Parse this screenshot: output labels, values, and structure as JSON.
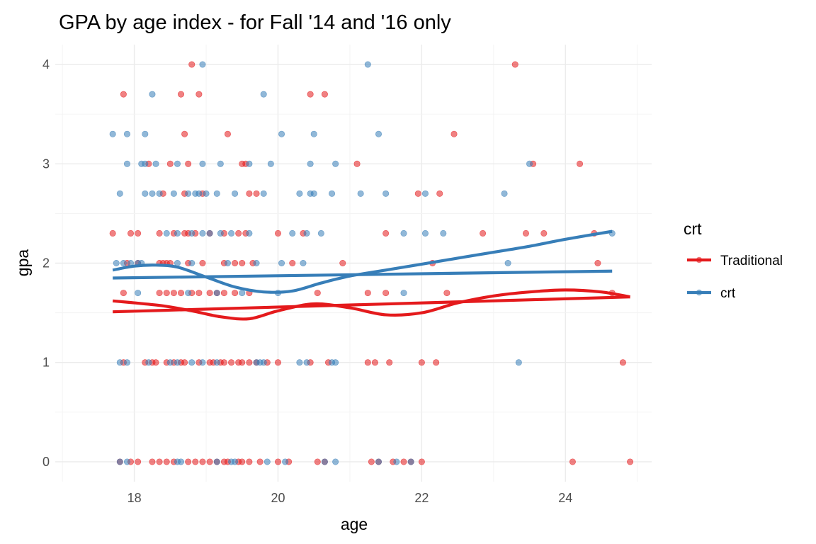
{
  "chart_data": {
    "type": "scatter",
    "title": "GPA by age index - for Fall '14 and '16 only",
    "xlabel": "age",
    "ylabel": "gpa",
    "xlim": [
      16.9,
      25.2
    ],
    "ylim": [
      -0.2,
      4.2
    ],
    "x_ticks": [
      18,
      20,
      22,
      24
    ],
    "x_tick_labels": [
      "18",
      "20",
      "22",
      "24"
    ],
    "y_ticks": [
      0,
      1,
      2,
      3,
      4
    ],
    "y_tick_labels": [
      "0",
      "1",
      "2",
      "3",
      "4"
    ],
    "grid": true,
    "legend": {
      "title": "crt",
      "position": "right",
      "entries": [
        "Traditional",
        "crt"
      ]
    },
    "series": [
      {
        "name": "Traditional",
        "color": "#e41a1c",
        "points": [
          [
            18.8,
            4.0
          ],
          [
            23.3,
            4.0
          ],
          [
            17.85,
            3.7
          ],
          [
            18.65,
            3.7
          ],
          [
            18.9,
            3.7
          ],
          [
            20.45,
            3.7
          ],
          [
            20.65,
            3.7
          ],
          [
            18.7,
            3.3
          ],
          [
            19.3,
            3.3
          ],
          [
            22.45,
            3.3
          ],
          [
            18.2,
            3.0
          ],
          [
            18.5,
            3.0
          ],
          [
            18.75,
            3.0
          ],
          [
            19.5,
            3.0
          ],
          [
            19.55,
            3.0
          ],
          [
            21.1,
            3.0
          ],
          [
            23.55,
            3.0
          ],
          [
            24.2,
            3.0
          ],
          [
            18.4,
            2.7
          ],
          [
            18.7,
            2.7
          ],
          [
            18.95,
            2.7
          ],
          [
            19.6,
            2.7
          ],
          [
            19.7,
            2.7
          ],
          [
            21.95,
            2.7
          ],
          [
            22.25,
            2.7
          ],
          [
            17.7,
            2.3
          ],
          [
            17.95,
            2.3
          ],
          [
            18.05,
            2.3
          ],
          [
            18.35,
            2.3
          ],
          [
            18.55,
            2.3
          ],
          [
            18.7,
            2.3
          ],
          [
            18.75,
            2.3
          ],
          [
            18.85,
            2.3
          ],
          [
            19.05,
            2.3
          ],
          [
            19.25,
            2.3
          ],
          [
            19.45,
            2.3
          ],
          [
            19.55,
            2.3
          ],
          [
            20.0,
            2.3
          ],
          [
            20.35,
            2.3
          ],
          [
            21.5,
            2.3
          ],
          [
            22.85,
            2.3
          ],
          [
            23.45,
            2.3
          ],
          [
            23.7,
            2.3
          ],
          [
            24.4,
            2.3
          ],
          [
            17.9,
            2.0
          ],
          [
            18.05,
            2.0
          ],
          [
            18.35,
            2.0
          ],
          [
            18.4,
            2.0
          ],
          [
            18.45,
            2.0
          ],
          [
            18.5,
            2.0
          ],
          [
            18.75,
            2.0
          ],
          [
            18.95,
            2.0
          ],
          [
            19.25,
            2.0
          ],
          [
            19.4,
            2.0
          ],
          [
            19.5,
            2.0
          ],
          [
            19.65,
            2.0
          ],
          [
            20.2,
            2.0
          ],
          [
            20.9,
            2.0
          ],
          [
            22.15,
            2.0
          ],
          [
            24.45,
            2.0
          ],
          [
            17.85,
            1.7
          ],
          [
            18.35,
            1.7
          ],
          [
            18.45,
            1.7
          ],
          [
            18.55,
            1.7
          ],
          [
            18.65,
            1.7
          ],
          [
            18.8,
            1.7
          ],
          [
            18.9,
            1.7
          ],
          [
            19.05,
            1.7
          ],
          [
            19.15,
            1.7
          ],
          [
            19.25,
            1.7
          ],
          [
            19.4,
            1.7
          ],
          [
            19.6,
            1.7
          ],
          [
            20.55,
            1.7
          ],
          [
            21.25,
            1.7
          ],
          [
            21.5,
            1.7
          ],
          [
            22.35,
            1.7
          ],
          [
            24.65,
            1.7
          ],
          [
            17.85,
            1.0
          ],
          [
            18.15,
            1.0
          ],
          [
            18.25,
            1.0
          ],
          [
            18.3,
            1.0
          ],
          [
            18.45,
            1.0
          ],
          [
            18.55,
            1.0
          ],
          [
            18.65,
            1.0
          ],
          [
            18.7,
            1.0
          ],
          [
            18.9,
            1.0
          ],
          [
            19.05,
            1.0
          ],
          [
            19.1,
            1.0
          ],
          [
            19.2,
            1.0
          ],
          [
            19.25,
            1.0
          ],
          [
            19.35,
            1.0
          ],
          [
            19.45,
            1.0
          ],
          [
            19.5,
            1.0
          ],
          [
            19.6,
            1.0
          ],
          [
            19.7,
            1.0
          ],
          [
            19.85,
            1.0
          ],
          [
            20.0,
            1.0
          ],
          [
            20.45,
            1.0
          ],
          [
            20.7,
            1.0
          ],
          [
            21.25,
            1.0
          ],
          [
            21.35,
            1.0
          ],
          [
            21.55,
            1.0
          ],
          [
            22.0,
            1.0
          ],
          [
            22.2,
            1.0
          ],
          [
            24.8,
            1.0
          ],
          [
            17.8,
            0.0
          ],
          [
            17.95,
            0.0
          ],
          [
            18.05,
            0.0
          ],
          [
            18.25,
            0.0
          ],
          [
            18.35,
            0.0
          ],
          [
            18.45,
            0.0
          ],
          [
            18.55,
            0.0
          ],
          [
            18.75,
            0.0
          ],
          [
            18.85,
            0.0
          ],
          [
            18.95,
            0.0
          ],
          [
            19.05,
            0.0
          ],
          [
            19.15,
            0.0
          ],
          [
            19.25,
            0.0
          ],
          [
            19.3,
            0.0
          ],
          [
            19.45,
            0.0
          ],
          [
            19.5,
            0.0
          ],
          [
            19.6,
            0.0
          ],
          [
            19.75,
            0.0
          ],
          [
            20.0,
            0.0
          ],
          [
            20.15,
            0.0
          ],
          [
            20.55,
            0.0
          ],
          [
            20.65,
            0.0
          ],
          [
            21.3,
            0.0
          ],
          [
            21.4,
            0.0
          ],
          [
            21.6,
            0.0
          ],
          [
            21.75,
            0.0
          ],
          [
            21.85,
            0.0
          ],
          [
            22.0,
            0.0
          ],
          [
            24.1,
            0.0
          ],
          [
            24.9,
            0.0
          ]
        ]
      },
      {
        "name": "crt",
        "color": "#377eb8",
        "points": [
          [
            18.95,
            4.0
          ],
          [
            21.25,
            4.0
          ],
          [
            18.25,
            3.7
          ],
          [
            19.8,
            3.7
          ],
          [
            17.7,
            3.3
          ],
          [
            17.9,
            3.3
          ],
          [
            18.15,
            3.3
          ],
          [
            20.05,
            3.3
          ],
          [
            20.5,
            3.3
          ],
          [
            21.4,
            3.3
          ],
          [
            17.9,
            3.0
          ],
          [
            18.1,
            3.0
          ],
          [
            18.15,
            3.0
          ],
          [
            18.3,
            3.0
          ],
          [
            18.6,
            3.0
          ],
          [
            18.95,
            3.0
          ],
          [
            19.2,
            3.0
          ],
          [
            19.6,
            3.0
          ],
          [
            19.9,
            3.0
          ],
          [
            20.45,
            3.0
          ],
          [
            20.8,
            3.0
          ],
          [
            23.5,
            3.0
          ],
          [
            17.8,
            2.7
          ],
          [
            18.15,
            2.7
          ],
          [
            18.25,
            2.7
          ],
          [
            18.35,
            2.7
          ],
          [
            18.55,
            2.7
          ],
          [
            18.75,
            2.7
          ],
          [
            18.85,
            2.7
          ],
          [
            18.9,
            2.7
          ],
          [
            19.0,
            2.7
          ],
          [
            19.15,
            2.7
          ],
          [
            19.4,
            2.7
          ],
          [
            19.8,
            2.7
          ],
          [
            20.3,
            2.7
          ],
          [
            20.45,
            2.7
          ],
          [
            20.5,
            2.7
          ],
          [
            20.75,
            2.7
          ],
          [
            21.15,
            2.7
          ],
          [
            21.5,
            2.7
          ],
          [
            22.05,
            2.7
          ],
          [
            23.15,
            2.7
          ],
          [
            18.45,
            2.3
          ],
          [
            18.6,
            2.3
          ],
          [
            18.8,
            2.3
          ],
          [
            18.95,
            2.3
          ],
          [
            19.05,
            2.3
          ],
          [
            19.2,
            2.3
          ],
          [
            19.35,
            2.3
          ],
          [
            19.6,
            2.3
          ],
          [
            20.2,
            2.3
          ],
          [
            20.4,
            2.3
          ],
          [
            20.6,
            2.3
          ],
          [
            21.75,
            2.3
          ],
          [
            22.05,
            2.3
          ],
          [
            22.3,
            2.3
          ],
          [
            24.65,
            2.3
          ],
          [
            17.75,
            2.0
          ],
          [
            17.85,
            2.0
          ],
          [
            17.95,
            2.0
          ],
          [
            18.05,
            2.0
          ],
          [
            18.1,
            2.0
          ],
          [
            18.6,
            2.0
          ],
          [
            18.8,
            2.0
          ],
          [
            19.3,
            2.0
          ],
          [
            19.7,
            2.0
          ],
          [
            20.05,
            2.0
          ],
          [
            20.35,
            2.0
          ],
          [
            23.2,
            2.0
          ],
          [
            18.05,
            1.7
          ],
          [
            18.75,
            1.7
          ],
          [
            19.15,
            1.7
          ],
          [
            19.5,
            1.7
          ],
          [
            20.0,
            1.7
          ],
          [
            21.75,
            1.7
          ],
          [
            17.8,
            1.0
          ],
          [
            17.9,
            1.0
          ],
          [
            18.2,
            1.0
          ],
          [
            18.5,
            1.0
          ],
          [
            18.6,
            1.0
          ],
          [
            18.8,
            1.0
          ],
          [
            18.95,
            1.0
          ],
          [
            19.15,
            1.0
          ],
          [
            19.7,
            1.0
          ],
          [
            19.75,
            1.0
          ],
          [
            19.8,
            1.0
          ],
          [
            20.3,
            1.0
          ],
          [
            20.4,
            1.0
          ],
          [
            20.75,
            1.0
          ],
          [
            20.8,
            1.0
          ],
          [
            23.35,
            1.0
          ],
          [
            17.8,
            0.0
          ],
          [
            17.9,
            0.0
          ],
          [
            18.6,
            0.0
          ],
          [
            18.65,
            0.0
          ],
          [
            19.15,
            0.0
          ],
          [
            19.35,
            0.0
          ],
          [
            19.4,
            0.0
          ],
          [
            19.85,
            0.0
          ],
          [
            20.1,
            0.0
          ],
          [
            20.65,
            0.0
          ],
          [
            20.8,
            0.0
          ],
          [
            21.4,
            0.0
          ],
          [
            21.65,
            0.0
          ],
          [
            21.85,
            0.0
          ]
        ]
      }
    ],
    "fitted_lines": [
      {
        "series": "Traditional",
        "method": "linear",
        "color": "#e41a1c",
        "x": [
          17.7,
          24.9
        ],
        "y": [
          1.51,
          1.66
        ]
      },
      {
        "series": "Traditional",
        "method": "loess",
        "color": "#e41a1c",
        "x": [
          17.7,
          18.0,
          18.4,
          18.8,
          19.2,
          19.6,
          20.0,
          20.5,
          21.0,
          21.5,
          22.0,
          22.5,
          23.0,
          23.5,
          24.0,
          24.5,
          24.9
        ],
        "y": [
          1.62,
          1.6,
          1.57,
          1.52,
          1.46,
          1.44,
          1.52,
          1.59,
          1.55,
          1.48,
          1.5,
          1.6,
          1.67,
          1.71,
          1.73,
          1.71,
          1.66
        ]
      },
      {
        "series": "crt",
        "method": "linear",
        "color": "#377eb8",
        "x": [
          17.7,
          24.65
        ],
        "y": [
          1.85,
          1.92
        ]
      },
      {
        "series": "crt",
        "method": "loess",
        "color": "#377eb8",
        "x": [
          17.7,
          18.0,
          18.3,
          18.6,
          19.0,
          19.4,
          19.8,
          20.2,
          20.6,
          21.0,
          21.5,
          22.0,
          22.5,
          23.0,
          23.5,
          24.0,
          24.65
        ],
        "y": [
          1.93,
          1.97,
          1.98,
          1.96,
          1.86,
          1.76,
          1.71,
          1.72,
          1.8,
          1.87,
          1.93,
          1.99,
          2.05,
          2.11,
          2.17,
          2.24,
          2.32
        ]
      }
    ]
  }
}
